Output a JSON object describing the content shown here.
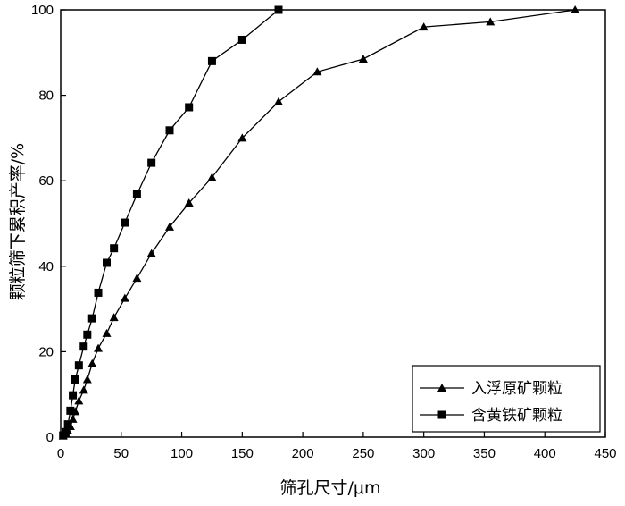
{
  "chart_data": {
    "type": "line",
    "title": "",
    "xlabel": "筛孔尺寸/μm",
    "ylabel": "颗粒筛下累积产率/%",
    "xlim": [
      0,
      450
    ],
    "ylim": [
      0,
      100
    ],
    "x_ticks": [
      "0",
      "50",
      "100",
      "150",
      "200",
      "250",
      "300",
      "350",
      "400",
      "450"
    ],
    "y_ticks": [
      "0",
      "20",
      "40",
      "60",
      "80",
      "100"
    ],
    "grid": false,
    "legend_position": "bottom-right",
    "series": [
      {
        "name": "入浮原矿颗粒",
        "marker": "triangle",
        "color": "#000000",
        "points": [
          [
            2,
            0.3
          ],
          [
            4,
            0.8
          ],
          [
            6,
            1.5
          ],
          [
            8,
            2.5
          ],
          [
            10,
            4.2
          ],
          [
            12,
            6.0
          ],
          [
            15,
            8.5
          ],
          [
            19,
            11.0
          ],
          [
            22,
            13.5
          ],
          [
            26,
            17.2
          ],
          [
            31,
            20.8
          ],
          [
            38,
            24.3
          ],
          [
            44,
            28.0
          ],
          [
            53,
            32.5
          ],
          [
            63,
            37.2
          ],
          [
            75,
            43.0
          ],
          [
            90,
            49.2
          ],
          [
            106,
            54.8
          ],
          [
            125,
            60.8
          ],
          [
            150,
            70.0
          ],
          [
            180,
            78.5
          ],
          [
            212,
            85.5
          ],
          [
            250,
            88.5
          ],
          [
            300,
            96.0
          ],
          [
            355,
            97.2
          ],
          [
            425,
            100
          ]
        ]
      },
      {
        "name": "含黄铁矿颗粒",
        "marker": "square",
        "color": "#000000",
        "points": [
          [
            2,
            0.4
          ],
          [
            4,
            1.2
          ],
          [
            6,
            3.0
          ],
          [
            8,
            6.2
          ],
          [
            10,
            9.8
          ],
          [
            12,
            13.5
          ],
          [
            15,
            16.8
          ],
          [
            19,
            21.2
          ],
          [
            22,
            24.0
          ],
          [
            26,
            27.8
          ],
          [
            31,
            33.8
          ],
          [
            38,
            40.8
          ],
          [
            44,
            44.2
          ],
          [
            53,
            50.2
          ],
          [
            63,
            56.8
          ],
          [
            75,
            64.2
          ],
          [
            90,
            71.8
          ],
          [
            106,
            77.2
          ],
          [
            125,
            88.0
          ],
          [
            150,
            93.0
          ],
          [
            180,
            100
          ]
        ]
      }
    ]
  }
}
